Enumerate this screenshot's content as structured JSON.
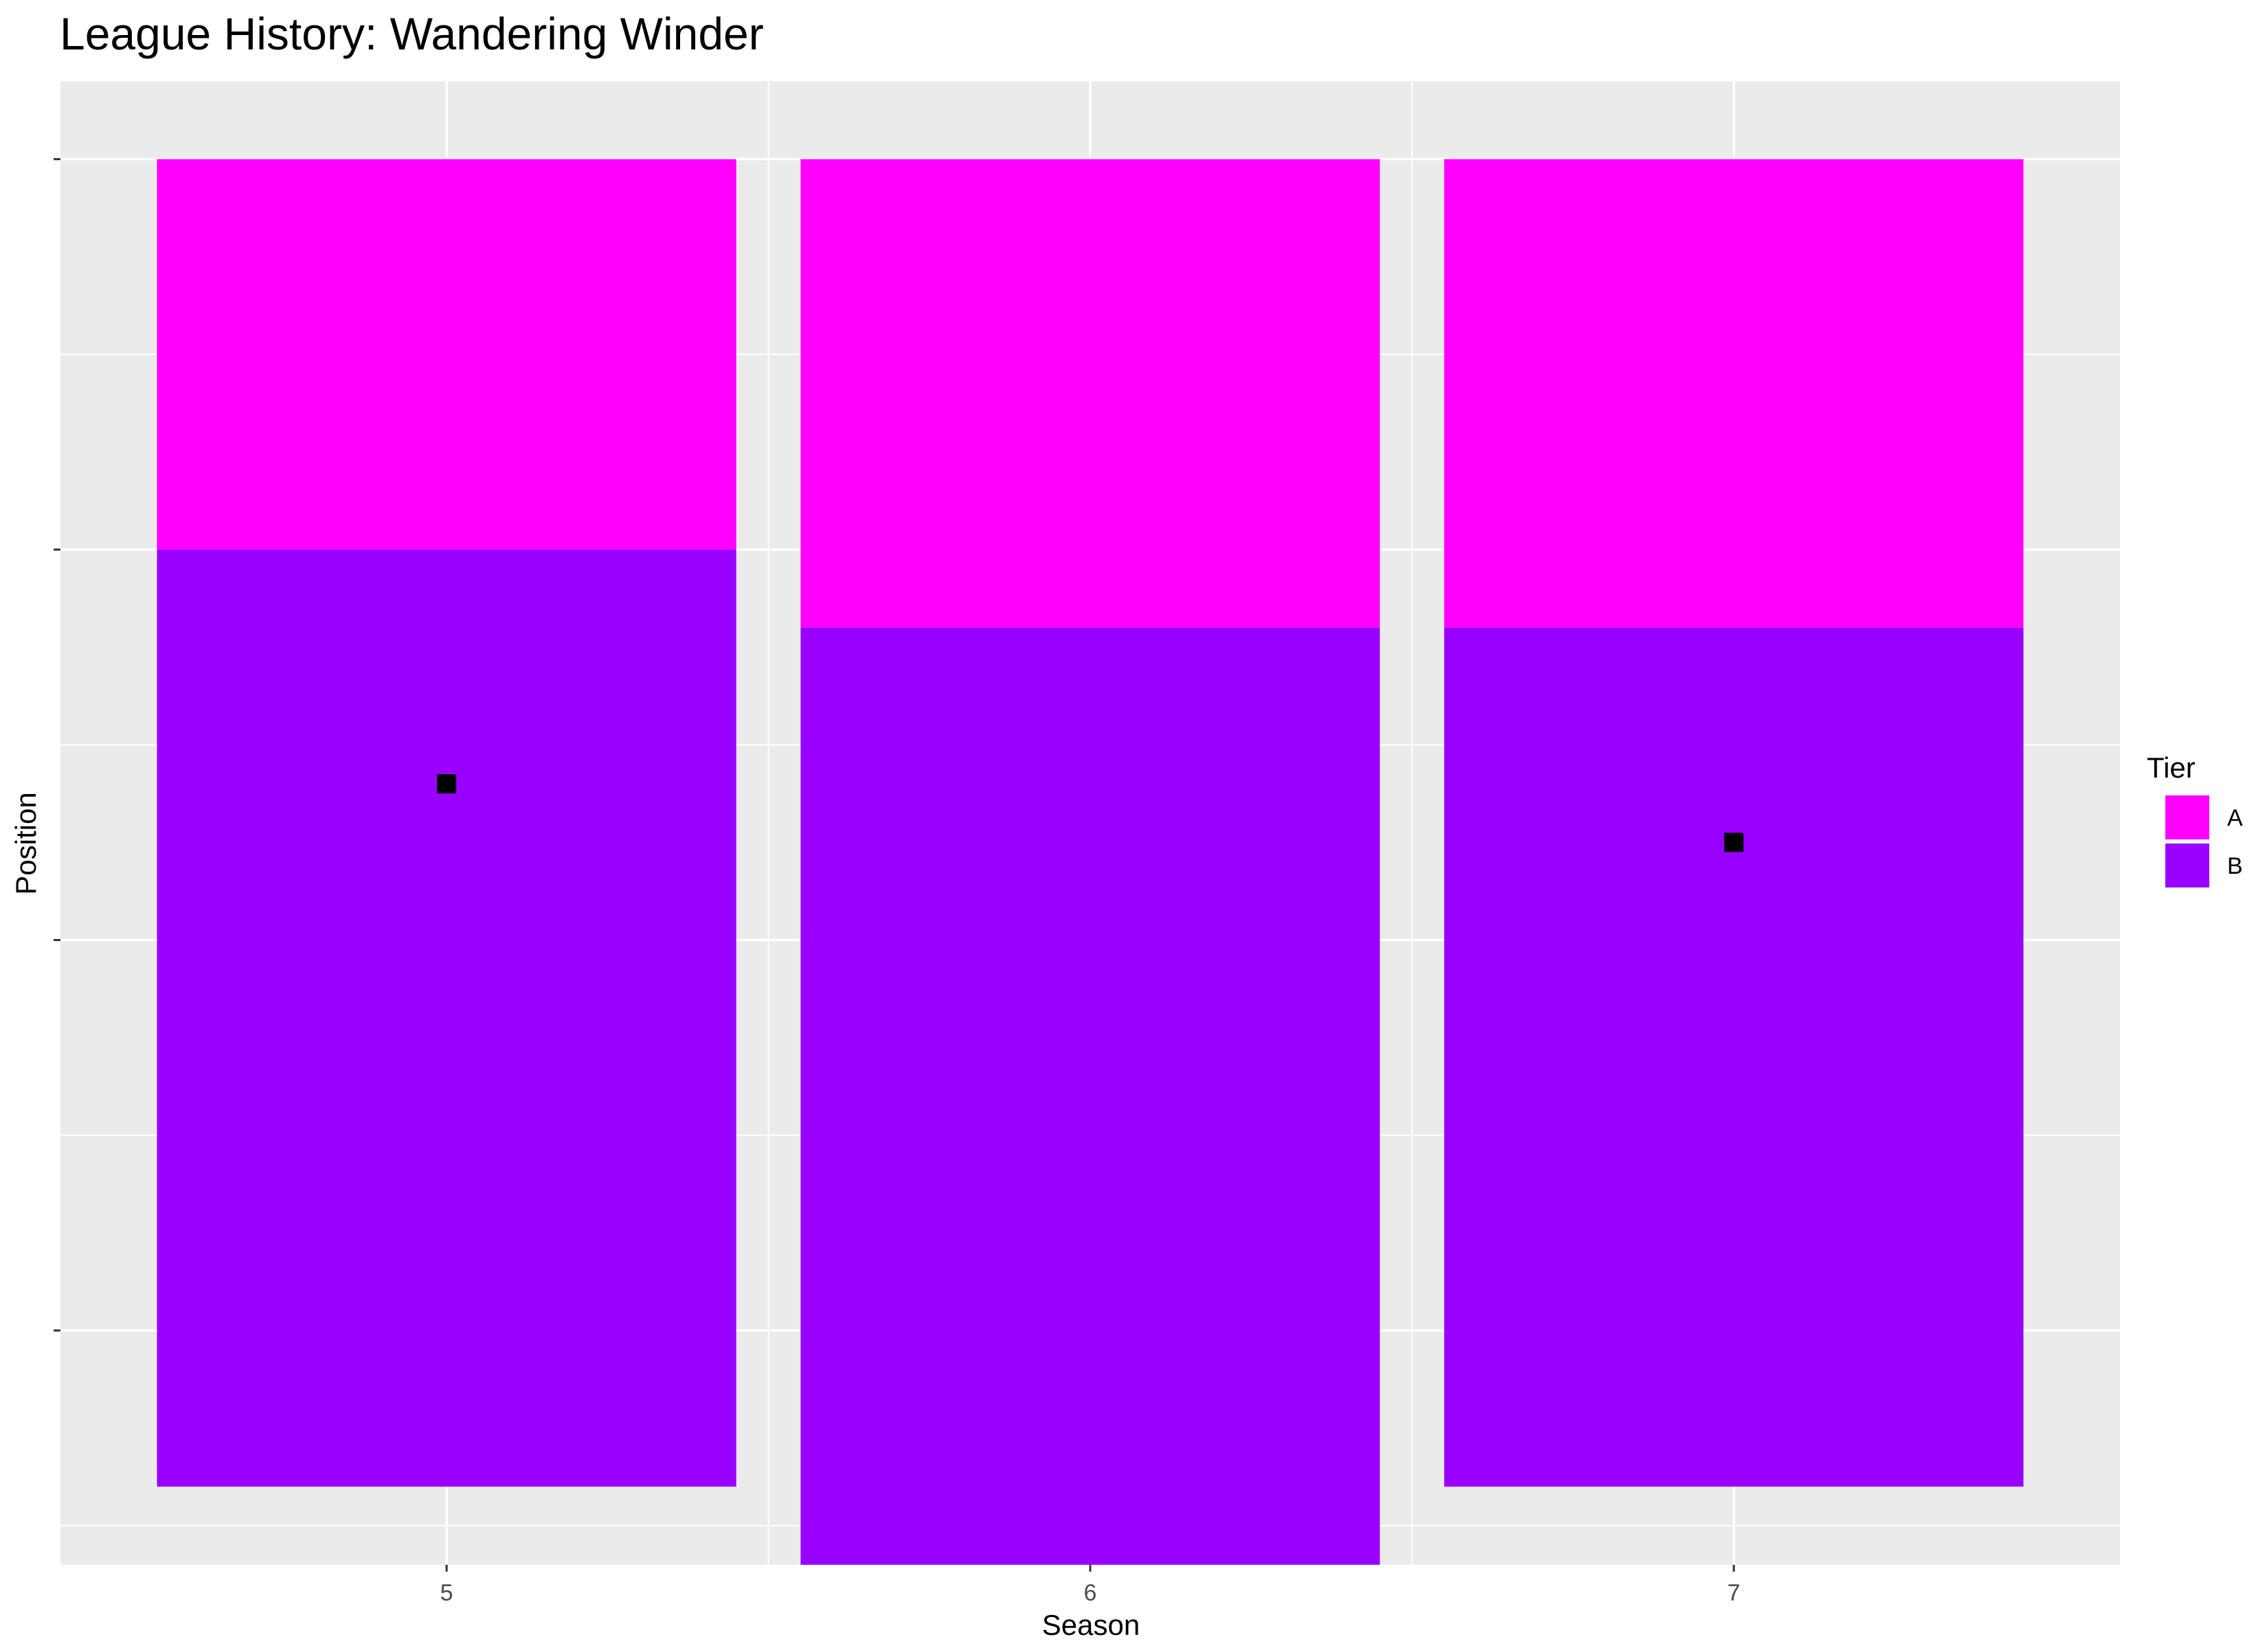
{
  "chart_data": {
    "type": "bar",
    "title": "League History: Wandering Winder",
    "xlabel": "Season",
    "ylabel": "Position",
    "categories": [
      "5",
      "6",
      "7"
    ],
    "ylim": [
      0,
      19
    ],
    "y_reversed": true,
    "y_tick_values": [
      1,
      6,
      11,
      16
    ],
    "y_tick_labels_shown": false,
    "grid": true,
    "legend": {
      "title": "Tier",
      "position": "right",
      "entries": [
        {
          "label": "A",
          "color": "#FF00FF"
        },
        {
          "label": "B",
          "color": "#9900FF"
        }
      ]
    },
    "series": [
      {
        "name": "A",
        "color": "#FF00FF",
        "from": [
          1,
          1,
          1
        ],
        "to": [
          6,
          7,
          7
        ]
      },
      {
        "name": "B",
        "color": "#9900FF",
        "from": [
          6,
          7,
          7
        ],
        "to": [
          18,
          19,
          18
        ]
      }
    ],
    "points": [
      {
        "season": "5",
        "position": 9
      },
      {
        "season": "7",
        "position": 9.75
      }
    ],
    "point_color": "#000000",
    "panel_background": "#EBEBEB",
    "grid_color": "#FFFFFF"
  }
}
